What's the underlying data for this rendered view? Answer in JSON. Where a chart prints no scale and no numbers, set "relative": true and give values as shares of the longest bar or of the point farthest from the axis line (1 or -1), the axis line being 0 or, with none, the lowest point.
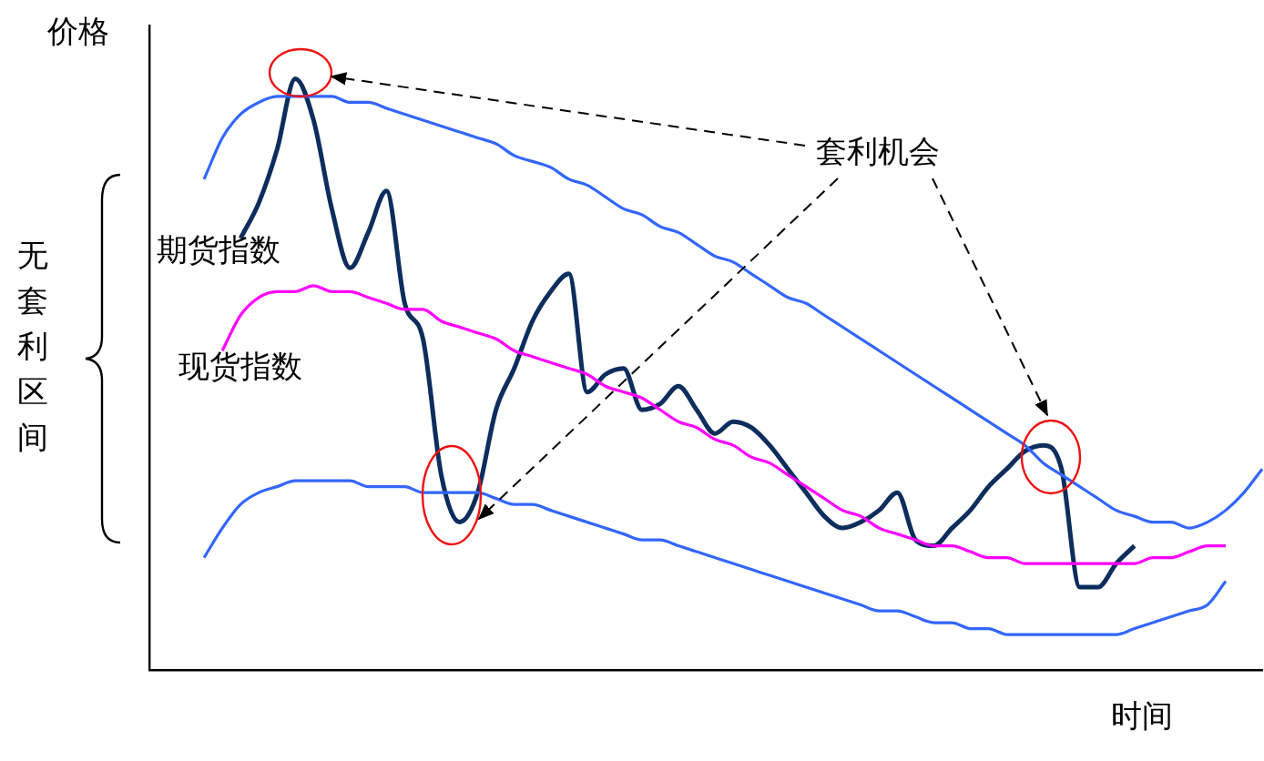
{
  "chart_data": {
    "type": "line",
    "relative": true,
    "xlabel": "时间",
    "ylabel": "价格",
    "tick_labels": false,
    "line_style": "solid",
    "marker": "none",
    "categories": [
      null,
      null,
      null,
      null,
      null,
      null,
      null,
      null,
      null,
      null,
      null,
      null,
      null,
      null,
      null,
      null,
      null,
      null,
      null,
      null,
      null,
      null,
      null,
      null,
      null,
      null,
      null,
      null,
      null,
      null,
      null,
      null,
      null,
      null,
      null,
      null,
      null,
      null,
      null,
      null,
      null,
      null,
      null,
      null,
      null,
      null,
      null,
      null,
      null,
      null,
      null,
      null,
      null,
      null,
      null,
      null,
      null,
      null,
      null,
      null,
      null,
      null
    ],
    "series": [
      {
        "color": "#3366ff",
        "values": [
          null,
          null,
          null,
          0.83,
          0.9,
          0.94,
          0.96,
          0.97,
          0.97,
          0.97,
          0.97,
          0.96,
          0.96,
          0.95,
          0.94,
          0.93,
          0.92,
          0.91,
          0.9,
          0.89,
          0.87,
          0.86,
          0.85,
          0.83,
          0.82,
          0.8,
          0.78,
          0.77,
          0.75,
          0.74,
          0.72,
          0.7,
          0.69,
          0.67,
          0.65,
          0.63,
          0.62,
          0.6,
          0.58,
          0.56,
          0.54,
          0.52,
          0.5,
          0.48,
          0.46,
          0.44,
          0.42,
          0.4,
          0.38,
          0.35,
          0.33,
          0.31,
          0.29,
          0.27,
          0.26,
          0.25,
          0.25,
          0.24,
          0.25,
          0.27,
          0.3,
          0.34
        ]
      },
      {
        "color": "#3366ff",
        "values": [
          null,
          null,
          null,
          0.19,
          0.24,
          0.28,
          0.3,
          0.31,
          0.32,
          0.32,
          0.32,
          0.32,
          0.31,
          0.31,
          0.31,
          0.3,
          0.3,
          0.3,
          0.3,
          0.29,
          0.28,
          0.28,
          0.27,
          0.26,
          0.25,
          0.24,
          0.23,
          0.22,
          0.22,
          0.21,
          0.2,
          0.19,
          0.18,
          0.17,
          0.16,
          0.15,
          0.14,
          0.13,
          0.12,
          0.11,
          0.1,
          0.1,
          0.09,
          0.08,
          0.08,
          0.07,
          0.07,
          0.06,
          0.06,
          0.06,
          0.06,
          0.06,
          0.06,
          0.06,
          0.07,
          0.08,
          0.09,
          0.1,
          0.11,
          0.15,
          null,
          null
        ]
      },
      {
        "name": "现货指数",
        "color": "#ff00ff",
        "values": [
          null,
          null,
          null,
          null,
          0.54,
          0.6,
          0.63,
          0.64,
          0.64,
          0.65,
          0.64,
          0.64,
          0.63,
          0.62,
          0.61,
          0.61,
          0.59,
          0.58,
          0.57,
          0.56,
          0.54,
          0.53,
          0.52,
          0.51,
          0.5,
          0.48,
          0.47,
          0.46,
          0.44,
          0.42,
          0.41,
          0.39,
          0.38,
          0.36,
          0.35,
          0.33,
          0.31,
          0.29,
          0.27,
          0.26,
          0.24,
          0.23,
          0.22,
          0.21,
          0.21,
          0.2,
          0.19,
          0.19,
          0.18,
          0.18,
          0.18,
          0.18,
          0.18,
          0.18,
          0.18,
          0.19,
          0.19,
          0.2,
          0.21,
          0.21,
          null,
          null
        ]
      },
      {
        "name": "期货指数",
        "color": "#0d2d5c",
        "values": [
          null,
          null,
          null,
          null,
          null,
          0.73,
          0.79,
          0.88,
          1,
          0.93,
          0.78,
          0.68,
          0.74,
          0.81,
          0.62,
          0.56,
          0.33,
          0.25,
          0.3,
          0.44,
          0.51,
          0.59,
          0.64,
          0.67,
          0.47,
          0.5,
          0.51,
          0.44,
          0.45,
          0.48,
          0.44,
          0.4,
          0.42,
          0.41,
          0.38,
          0.34,
          0.3,
          0.26,
          0.24,
          0.25,
          0.27,
          0.3,
          0.22,
          0.21,
          0.24,
          0.27,
          0.31,
          0.34,
          0.37,
          0.38,
          0.34,
          0.14,
          0.14,
          0.18,
          0.21,
          null,
          null,
          null,
          null,
          null,
          null,
          null
        ]
      }
    ],
    "annotations": [
      "套利机会",
      "无套利区间"
    ]
  }
}
